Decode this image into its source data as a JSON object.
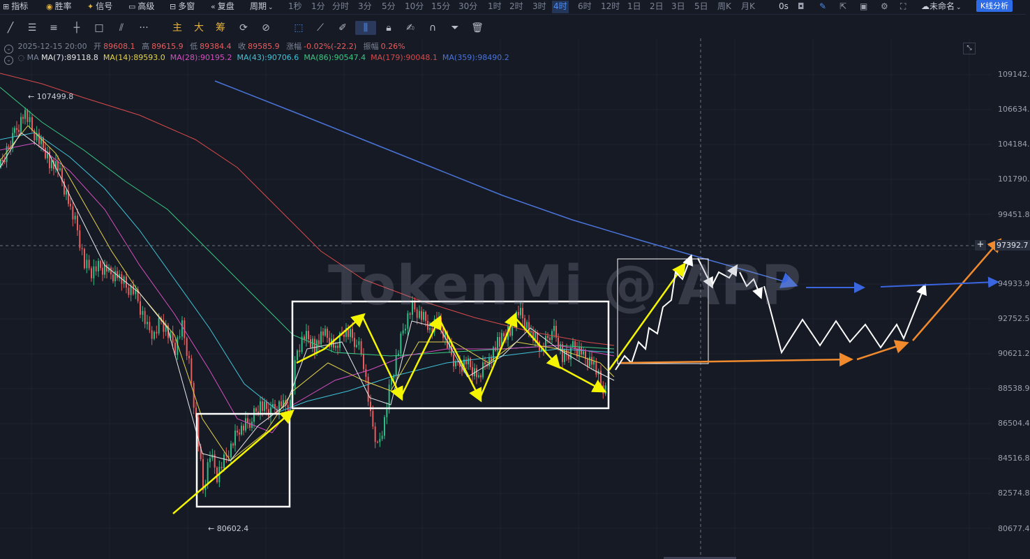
{
  "toolbar": {
    "indicators": "指标",
    "win_rate": "胜率",
    "signal": "信号",
    "advanced": "高级",
    "multi_window": "多窗",
    "replay": "复盘",
    "period": "周期",
    "timeframes": [
      "1秒",
      "1分",
      "分时",
      "3分",
      "5分",
      "10分",
      "15分",
      "30分",
      "1时",
      "2时",
      "3时",
      "4时",
      "6时",
      "12时",
      "1日",
      "2日",
      "3日",
      "5日",
      "周K",
      "月K"
    ],
    "active_timeframe": "4时",
    "countdown": "0s",
    "layout_name": "未命名",
    "kline_analysis": "K线分析"
  },
  "drawing_toolbar": {
    "main": "主",
    "large": "大",
    "chips": "筹"
  },
  "info": {
    "datetime": "2025-12-15 20:00",
    "open_label": "开",
    "open": "89608.1",
    "high_label": "高",
    "high": "89615.9",
    "low_label": "低",
    "low": "89384.4",
    "close_label": "收",
    "close": "89585.9",
    "change_label": "涨幅",
    "change": "-0.02%(-22.2)",
    "amplitude_label": "振幅",
    "amplitude": "0.26%"
  },
  "ma": {
    "label": "MA",
    "items": [
      {
        "text": "MA(7):89118.8",
        "color": "#e8e8e8"
      },
      {
        "text": "MA(14):89593.0",
        "color": "#e5d34a"
      },
      {
        "text": "MA(28):90195.2",
        "color": "#d64fc1"
      },
      {
        "text": "MA(43):90706.6",
        "color": "#3fc4d8"
      },
      {
        "text": "MA(86):90547.4",
        "color": "#39c981"
      },
      {
        "text": "MA(179):90048.1",
        "color": "#d94a4a"
      },
      {
        "text": "MA(359):98490.2",
        "color": "#4a74d9"
      }
    ]
  },
  "price_axis": [
    "109142.",
    "106634.",
    "104184.",
    "101790.",
    "99451.8",
    "97392.7",
    "94933.9",
    "92752.5",
    "90621.2",
    "88538.9",
    "86504.4",
    "84516.8",
    "82574.8",
    "80677.4"
  ],
  "crosshair_price": "97392.7",
  "extremes": {
    "high": "107499.8",
    "low": "80602.4"
  },
  "watermark": "TokenMi @ APP"
}
